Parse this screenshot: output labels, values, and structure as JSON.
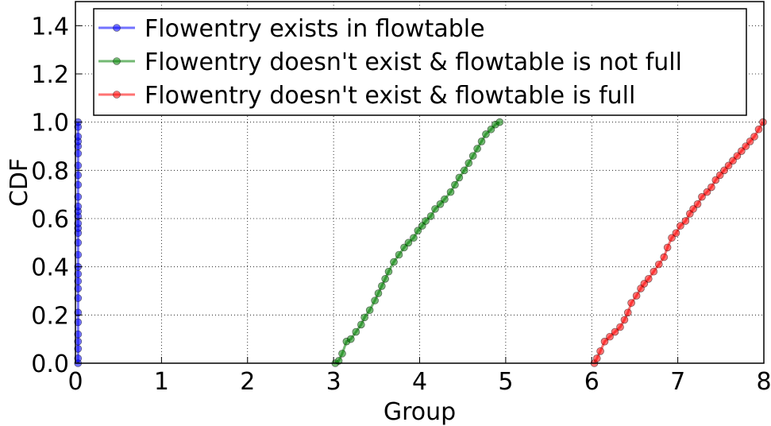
{
  "chart_data": {
    "type": "line",
    "title": "",
    "xlabel": "Group",
    "ylabel": "CDF",
    "xlim": [
      0,
      8
    ],
    "ylim": [
      0,
      1.5
    ],
    "xticks": [
      "0",
      "1",
      "2",
      "3",
      "4",
      "5",
      "6",
      "7",
      "8"
    ],
    "yticks": [
      "0.0",
      "0.2",
      "0.4",
      "0.6",
      "0.8",
      "1.0",
      "1.2",
      "1.4"
    ],
    "grid": true,
    "legend_position": "top-right",
    "series": [
      {
        "name": "Flowentry exists in flowtable",
        "color": "#0000ff",
        "x": [
          0.03,
          0.03,
          0.03,
          0.03,
          0.03,
          0.03,
          0.03,
          0.03,
          0.03,
          0.03,
          0.03,
          0.03,
          0.03,
          0.03,
          0.03,
          0.03,
          0.03,
          0.03,
          0.03,
          0.03,
          0.03,
          0.03,
          0.03,
          0.03,
          0.03,
          0.03,
          0.03,
          0.03,
          0.03,
          0.03
        ],
        "y": [
          0.0,
          0.02,
          0.06,
          0.09,
          0.12,
          0.17,
          0.21,
          0.27,
          0.31,
          0.34,
          0.37,
          0.4,
          0.45,
          0.5,
          0.54,
          0.56,
          0.58,
          0.61,
          0.63,
          0.65,
          0.69,
          0.74,
          0.78,
          0.82,
          0.87,
          0.9,
          0.92,
          0.94,
          0.98,
          1.0
        ]
      },
      {
        "name": "Flowentry doesn't exist & flowtable is not full",
        "color": "#008000",
        "x": [
          3.02,
          3.06,
          3.1,
          3.15,
          3.2,
          3.26,
          3.32,
          3.36,
          3.42,
          3.48,
          3.52,
          3.56,
          3.6,
          3.64,
          3.7,
          3.76,
          3.82,
          3.87,
          3.93,
          3.98,
          4.03,
          4.07,
          4.13,
          4.18,
          4.24,
          4.29,
          4.36,
          4.41,
          4.46,
          4.52,
          4.57,
          4.62,
          4.67,
          4.72,
          4.77,
          4.83,
          4.88,
          4.93
        ],
        "y": [
          0.0,
          0.01,
          0.04,
          0.09,
          0.1,
          0.13,
          0.16,
          0.19,
          0.22,
          0.26,
          0.29,
          0.32,
          0.35,
          0.38,
          0.42,
          0.45,
          0.48,
          0.5,
          0.52,
          0.55,
          0.57,
          0.59,
          0.61,
          0.64,
          0.66,
          0.68,
          0.71,
          0.74,
          0.77,
          0.8,
          0.83,
          0.86,
          0.89,
          0.92,
          0.95,
          0.97,
          0.99,
          1.0
        ]
      },
      {
        "name": "Flowentry doesn't exist & flowtable is full",
        "color": "#ff0000",
        "x": [
          6.03,
          6.06,
          6.1,
          6.15,
          6.21,
          6.27,
          6.33,
          6.38,
          6.42,
          6.46,
          6.52,
          6.57,
          6.61,
          6.66,
          6.72,
          6.78,
          6.84,
          6.88,
          6.93,
          6.98,
          7.03,
          7.09,
          7.14,
          7.18,
          7.23,
          7.28,
          7.34,
          7.39,
          7.44,
          7.49,
          7.54,
          7.59,
          7.64,
          7.69,
          7.74,
          7.79,
          7.84,
          7.89,
          7.94,
          7.99
        ],
        "y": [
          0.0,
          0.02,
          0.05,
          0.09,
          0.11,
          0.13,
          0.15,
          0.18,
          0.21,
          0.25,
          0.28,
          0.31,
          0.33,
          0.35,
          0.38,
          0.41,
          0.44,
          0.48,
          0.52,
          0.54,
          0.57,
          0.59,
          0.62,
          0.64,
          0.66,
          0.69,
          0.71,
          0.73,
          0.76,
          0.78,
          0.8,
          0.82,
          0.84,
          0.86,
          0.88,
          0.9,
          0.92,
          0.94,
          0.97,
          1.0
        ]
      }
    ]
  }
}
